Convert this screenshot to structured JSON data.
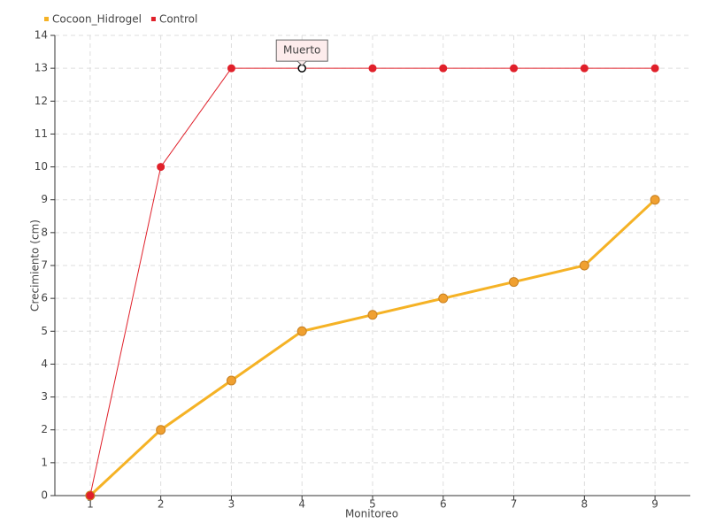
{
  "chart_data": {
    "type": "line",
    "x": [
      1,
      2,
      3,
      4,
      5,
      6,
      7,
      8,
      9
    ],
    "series": [
      {
        "name": "Cocoon_Hidrogel",
        "color": "#f5b225",
        "values": [
          0,
          2,
          3.5,
          5,
          5.5,
          6,
          6.5,
          7,
          9
        ]
      },
      {
        "name": "Control",
        "color": "#e0202a",
        "values": [
          0,
          10,
          13,
          13,
          13,
          13,
          13,
          13,
          13
        ]
      }
    ],
    "x_label": "Monitoreo",
    "y_label": "Crecimiento (cm)",
    "xlim": [
      0.5,
      9.5
    ],
    "xticks": [
      1,
      2,
      3,
      4,
      5,
      6,
      7,
      8,
      9
    ],
    "ylim": [
      0,
      14
    ],
    "yticks": [
      0,
      1,
      2,
      3,
      4,
      5,
      6,
      7,
      8,
      9,
      10,
      11,
      12,
      13,
      14
    ],
    "grid": true,
    "legend": "top-left",
    "annotation": "Muerto"
  }
}
